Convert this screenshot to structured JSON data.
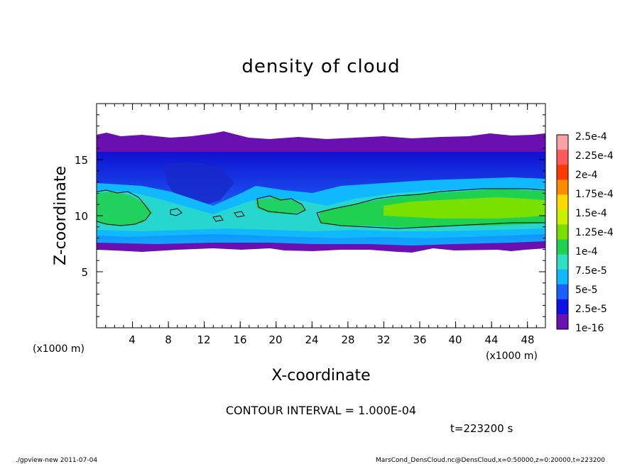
{
  "chart_data": {
    "type": "heatmap",
    "title": "density of cloud",
    "xlabel": "X-coordinate",
    "ylabel": "Z-coordinate",
    "x_unit_left": "(x1000 m)",
    "x_unit_right": "(x1000 m)",
    "xlim": [
      0,
      50
    ],
    "ylim": [
      0,
      20
    ],
    "x_ticks": [
      "4",
      "8",
      "12",
      "16",
      "20",
      "24",
      "28",
      "32",
      "36",
      "40",
      "44",
      "48"
    ],
    "y_ticks": [
      "5",
      "10",
      "15"
    ],
    "colorbar_labels": [
      "2.5e-4",
      "2.25e-4",
      "2e-4",
      "1.75e-4",
      "1.5e-4",
      "1.25e-4",
      "1e-4",
      "7.5e-5",
      "5e-5",
      "2.5e-5",
      "1e-16"
    ],
    "colorbar_colors": [
      "#f7a3a3",
      "#ff5a5a",
      "#ff3a00",
      "#ff8a00",
      "#ffd800",
      "#c8f000",
      "#7ae000",
      "#20d050",
      "#30e0c0",
      "#10b8ff",
      "#1a60ff",
      "#1010e8",
      "#6a10b0"
    ],
    "contour_level": 0.0001,
    "contour_interval": "CONTOUR INTERVAL = 1.000E-04",
    "cloud_layer": {
      "cloud_top_z_approx": 16.5,
      "cloud_base_z_approx": 7.5,
      "dense_band_z_approx": [
        9,
        12
      ]
    },
    "time_label": "t=223200 s",
    "footer_left": "./gpview-new   2011-07-04",
    "footer_right": "MarsCond_DensCloud.nc@DensCloud,x=0:50000,z=0:20000,t=223200"
  }
}
